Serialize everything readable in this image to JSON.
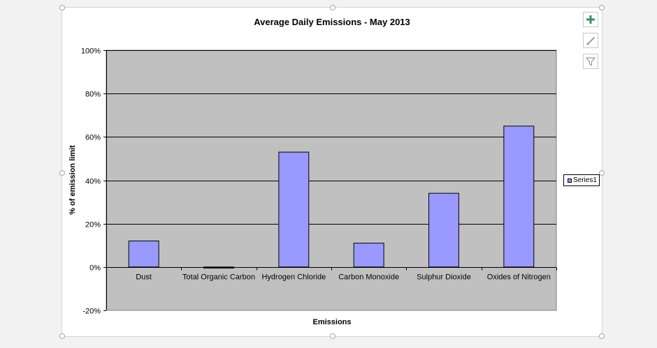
{
  "toolbar": {
    "add_element_icon": "plus-icon",
    "styles_icon": "brush-icon",
    "filter_icon": "funnel-icon"
  },
  "colors": {
    "plot_area": "#c0c0c0",
    "bar_fill": "#9999ff",
    "bar_stroke": "#000000",
    "gridline": "#000000",
    "add_icon": "#3f8f5f"
  },
  "chart_data": {
    "type": "bar",
    "title": "Average Daily Emissions - May 2013",
    "xlabel": "Emissions",
    "ylabel": "% of emission limit",
    "categories": [
      "Dust",
      "Total Organic Carbon",
      "Hydrogen Chloride",
      "Carbon Monoxide",
      "Sulphur Dioxide",
      "Oxides of Nitrogen"
    ],
    "series": [
      {
        "name": "Series1",
        "values": [
          12,
          -0.5,
          53,
          11,
          34,
          65
        ]
      }
    ],
    "ylim": [
      -20,
      100
    ],
    "yticks": [
      -20,
      0,
      20,
      40,
      60,
      80,
      100
    ],
    "ytick_labels": [
      "-20%",
      "0%",
      "20%",
      "40%",
      "60%",
      "80%",
      "100%"
    ],
    "grid": true,
    "legend_position": "right"
  }
}
